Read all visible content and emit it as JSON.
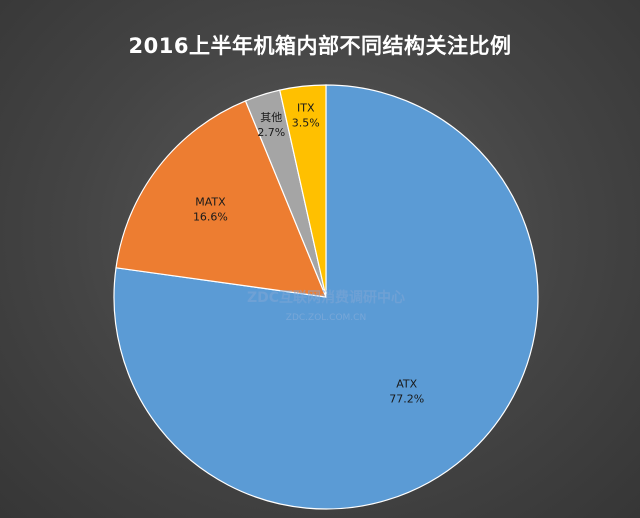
{
  "chart_data": {
    "type": "pie",
    "title": "2016上半年机箱内部不同结构关注比例",
    "slices": [
      {
        "label": "ATX",
        "value": 77.2,
        "display": "77.2%",
        "color": "#5b9bd5"
      },
      {
        "label": "MATX",
        "value": 16.6,
        "display": "16.6%",
        "color": "#ed7d31"
      },
      {
        "label": "其他",
        "value": 2.7,
        "display": "2.7%",
        "color": "#a5a5a5"
      },
      {
        "label": "ITX",
        "value": 3.5,
        "display": "3.5%",
        "color": "#ffc000"
      }
    ],
    "start": "12 o'clock",
    "direction": "clockwise"
  },
  "watermark": {
    "main": "ZDC互联网消费调研中心",
    "sub": "ZDC.ZOL.COM.CN"
  }
}
